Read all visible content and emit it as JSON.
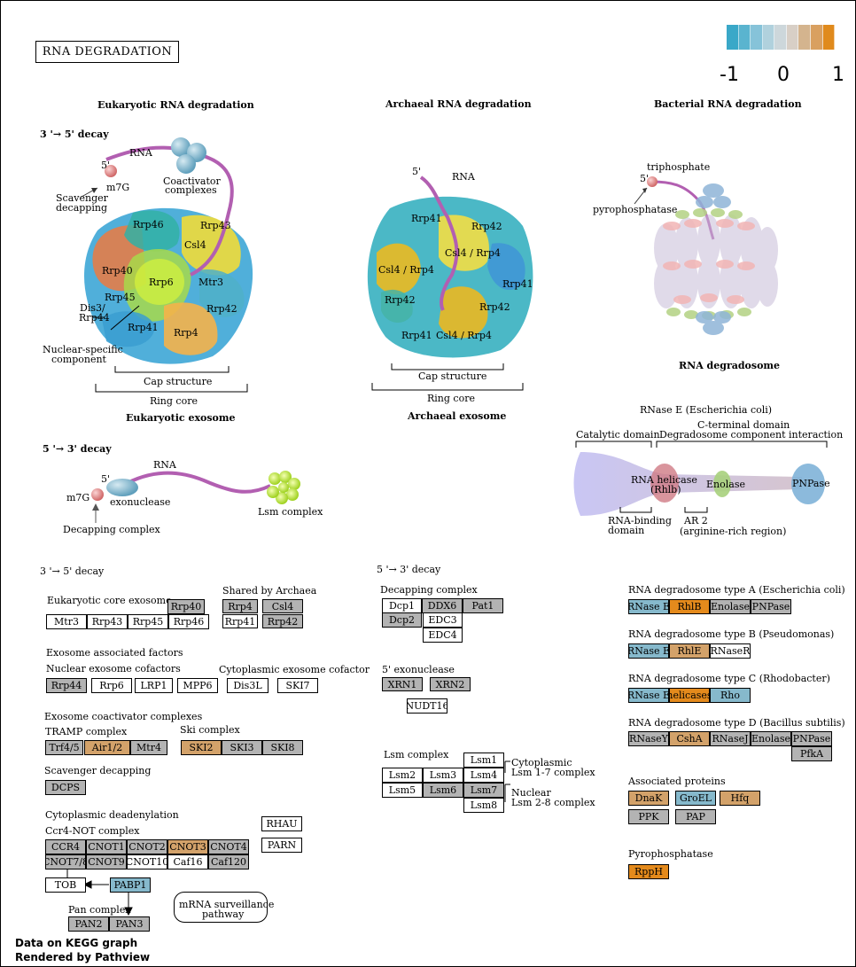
{
  "title": "RNA  DEGRADATION",
  "legend": {
    "min": "-1",
    "mid": "0",
    "max": "1",
    "colors": [
      "#3aa8c8",
      "#5ab4cf",
      "#86c3d9",
      "#b0d1dd",
      "#cdd7db",
      "#d8cfc6",
      "#d4b48e",
      "#d9a060",
      "#e08a1c"
    ]
  },
  "colors": {
    "gray": "#b3b3b3",
    "blue": "#86b9cc",
    "tan": "#d3a26a",
    "orange": "#e48a1c",
    "white": "#ffffff"
  },
  "headings": {
    "eukaryotic": "Eukaryotic RNA degradation",
    "archaeal": "Archaeal RNA degradation",
    "bacterial": "Bacterial RNA degradation",
    "decay35": "3 '→ 5' decay",
    "decay53": "5 '→ 3' decay",
    "euk_exosome": "Eukaryotic exosome",
    "arch_exosome": "Archaeal exosome",
    "degradosome": "RNA degradosome"
  },
  "illus": {
    "rna": "RNA",
    "five": "5'",
    "m7g": "m7G",
    "scavenger1": "Scavenger",
    "scavenger2": "decapping",
    "coact1": "Coactivator",
    "coact2": "complexes",
    "rrp46": "Rrp46",
    "rrp43": "Rrp43",
    "csl4": "Csl4",
    "rrp40": "Rrp40",
    "rrp6": "Rrp6",
    "mtr3": "Mtr3",
    "rrp45": "Rrp45",
    "dis3a": "Dis3/",
    "dis3b": "Rrp44",
    "rrp42": "Rrp42",
    "rrp41": "Rrp41",
    "rrp4": "Rrp4",
    "nuc1": "Nuclear-specific",
    "nuc2": "component",
    "cap": "Cap structure",
    "ring": "Ring core",
    "csl4rrp4": "Csl4 / Rrp4",
    "triphosphate": "triphosphate",
    "pyrophosphatase": "pyrophosphatase",
    "exonuclease": "exonuclease",
    "decapping": "Decapping complex",
    "lsm": "Lsm complex",
    "rnase_e": "RNase E (Escherichia coli)",
    "cterm": "C-terminal domain",
    "catalytic": "Catalytic domain",
    "degint": "Degradosome component interaction",
    "helicase1": "RNA helicase",
    "helicase2": "(Rhlb)",
    "enolase": "Enolase",
    "pnpase": "PNPase",
    "rbd1": "RNA-binding",
    "rbd2": "domain",
    "ar1": "AR 2",
    "ar2": "(arginine-rich region)"
  },
  "lower": {
    "decay35": "3 '→ 5' decay",
    "core_exosome": "Eukaryotic core exosome",
    "shared": "Shared by Archaea",
    "assoc_factors": "Exosome associated factors",
    "nuclear_cof": "Nuclear exosome cofactors",
    "cyto_cof": "Cytoplasmic exosome cofactor",
    "coact": "Exosome coactivator complexes",
    "tramp": "TRAMP complex",
    "ski": "Ski complex",
    "scav": "Scavenger decapping",
    "deadenyl": "Cytoplasmic deadenylation",
    "ccr4": "Ccr4-NOT complex",
    "pan": "Pan complex",
    "surv1": "mRNA surveillance",
    "surv2": "pathway",
    "decay53": "5 '→ 3' decay",
    "decap": "Decapping complex",
    "exo5": "5' exonuclease",
    "lsm": "Lsm complex",
    "lsm17a": "Cytoplasmic",
    "lsm17b": "Lsm 1-7 complex",
    "lsm28a": "Nuclear",
    "lsm28b": "Lsm 2-8 complex",
    "degA": "RNA degradosome type A (Escherichia coli)",
    "degB": "RNA degradosome type B (Pseudomonas)",
    "degC": "RNA degradosome type C (Rhodobacter)",
    "degD": "RNA degradosome type D (Bacillus subtilis)",
    "assoc": "Associated proteins",
    "pyro": "Pyrophosphatase"
  },
  "genes": [
    {
      "label": "Rrp40",
      "color": "gray"
    },
    {
      "label": "Mtr3",
      "color": "white"
    },
    {
      "label": "Rrp43",
      "color": "white"
    },
    {
      "label": "Rrp45",
      "color": "white"
    },
    {
      "label": "Rrp46",
      "color": "white"
    },
    {
      "label": "Rrp4",
      "color": "gray"
    },
    {
      "label": "Csl4",
      "color": "gray"
    },
    {
      "label": "Rrp41",
      "color": "white"
    },
    {
      "label": "Rrp42",
      "color": "gray"
    },
    {
      "label": "Rrp44",
      "color": "gray"
    },
    {
      "label": "Rrp6",
      "color": "white"
    },
    {
      "label": "LRP1",
      "color": "white"
    },
    {
      "label": "MPP6",
      "color": "white"
    },
    {
      "label": "Dis3L",
      "color": "white"
    },
    {
      "label": "SKI7",
      "color": "white"
    },
    {
      "label": "Trf4/5",
      "color": "gray"
    },
    {
      "label": "Air1/2",
      "color": "tan"
    },
    {
      "label": "Mtr4",
      "color": "gray"
    },
    {
      "label": "SKI2",
      "color": "tan"
    },
    {
      "label": "SKI3",
      "color": "gray"
    },
    {
      "label": "SKI8",
      "color": "gray"
    },
    {
      "label": "DCPS",
      "color": "gray"
    },
    {
      "label": "CCR4",
      "color": "gray"
    },
    {
      "label": "CNOT1",
      "color": "gray"
    },
    {
      "label": "CNOT2",
      "color": "gray"
    },
    {
      "label": "CNOT3",
      "color": "tan"
    },
    {
      "label": "CNOT4",
      "color": "gray"
    },
    {
      "label": "CNOT7/8",
      "color": "gray"
    },
    {
      "label": "CNOT9",
      "color": "gray"
    },
    {
      "label": "CNOT10",
      "color": "white"
    },
    {
      "label": "Caf16",
      "color": "white"
    },
    {
      "label": "Caf120",
      "color": "gray"
    },
    {
      "label": "RHAU",
      "color": "white"
    },
    {
      "label": "PARN",
      "color": "white"
    },
    {
      "label": "TOB",
      "color": "white"
    },
    {
      "label": "PABP1",
      "color": "blue"
    },
    {
      "label": "PAN2",
      "color": "gray"
    },
    {
      "label": "PAN3",
      "color": "gray"
    },
    {
      "label": "Dcp1",
      "color": "white"
    },
    {
      "label": "DDX6",
      "color": "gray"
    },
    {
      "label": "Pat1",
      "color": "gray"
    },
    {
      "label": "Dcp2",
      "color": "gray"
    },
    {
      "label": "EDC3",
      "color": "white"
    },
    {
      "label": "EDC4",
      "color": "white"
    },
    {
      "label": "XRN1",
      "color": "gray"
    },
    {
      "label": "XRN2",
      "color": "gray"
    },
    {
      "label": "NUDT16",
      "color": "white"
    },
    {
      "label": "Lsm1",
      "color": "white"
    },
    {
      "label": "Lsm2",
      "color": "white"
    },
    {
      "label": "Lsm3",
      "color": "white"
    },
    {
      "label": "Lsm4",
      "color": "white"
    },
    {
      "label": "Lsm5",
      "color": "white"
    },
    {
      "label": "Lsm6",
      "color": "gray"
    },
    {
      "label": "Lsm7",
      "color": "gray"
    },
    {
      "label": "Lsm8",
      "color": "white"
    },
    {
      "label": "RNase E",
      "color": "blue"
    },
    {
      "label": "RhlB",
      "color": "orange"
    },
    {
      "label": "Enolase",
      "color": "gray"
    },
    {
      "label": "PNPase",
      "color": "gray"
    },
    {
      "label": "RNase E",
      "color": "blue"
    },
    {
      "label": "RhlE",
      "color": "tan"
    },
    {
      "label": "RNaseR",
      "color": "white"
    },
    {
      "label": "RNase E",
      "color": "blue"
    },
    {
      "label": "helicases",
      "color": "orange"
    },
    {
      "label": "Rho",
      "color": "blue"
    },
    {
      "label": "RNaseY",
      "color": "gray"
    },
    {
      "label": "CshA",
      "color": "tan"
    },
    {
      "label": "RNaseJ",
      "color": "gray"
    },
    {
      "label": "Enolase",
      "color": "gray"
    },
    {
      "label": "PNPase",
      "color": "gray"
    },
    {
      "label": "PfkA",
      "color": "gray"
    },
    {
      "label": "DnaK",
      "color": "tan"
    },
    {
      "label": "GroEL",
      "color": "blue"
    },
    {
      "label": "Hfq",
      "color": "tan"
    },
    {
      "label": "PPK",
      "color": "gray"
    },
    {
      "label": "PAP",
      "color": "gray"
    },
    {
      "label": "RppH",
      "color": "orange"
    }
  ],
  "footer": {
    "line1": "Data on KEGG graph",
    "line2": "Rendered by Pathview"
  }
}
